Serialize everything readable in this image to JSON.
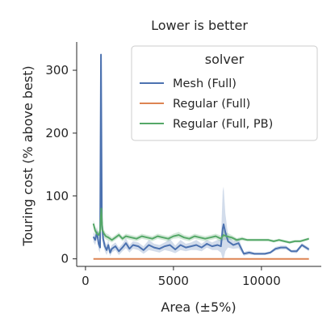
{
  "chart_data": {
    "type": "line",
    "title": "Lower is better",
    "xlabel": "Area (±5%)",
    "ylabel": "Touring cost (% above best)",
    "xlim": [
      -500,
      13400
    ],
    "ylim": [
      -12,
      345
    ],
    "xticks": [
      0,
      5000,
      10000
    ],
    "xtick_labels": [
      "0",
      "5000",
      "10000"
    ],
    "yticks": [
      0,
      100,
      200,
      300
    ],
    "ytick_labels": [
      "0",
      "100",
      "200",
      "300"
    ],
    "grid": false,
    "legend": {
      "title": "solver",
      "placement": "top-right",
      "entries": [
        "Mesh (Full)",
        "Regular (Full)",
        "Regular (Full, PB)"
      ]
    },
    "series": [
      {
        "name": "Mesh (Full)",
        "color": "#4c72b0",
        "x": [
          450,
          550,
          650,
          750,
          830,
          880,
          930,
          1000,
          1100,
          1200,
          1300,
          1400,
          1500,
          1700,
          1900,
          2100,
          2300,
          2500,
          2700,
          3000,
          3300,
          3600,
          3900,
          4200,
          4500,
          4800,
          5100,
          5400,
          5700,
          6000,
          6300,
          6600,
          6900,
          7200,
          7500,
          7700,
          7800,
          7850,
          7950,
          8100,
          8400,
          8700,
          9000,
          9300,
          9600,
          9900,
          10200,
          10500,
          10800,
          11100,
          11400,
          11700,
          12000,
          12300,
          12700
        ],
        "y": [
          35,
          30,
          42,
          24,
          18,
          325,
          60,
          32,
          20,
          14,
          22,
          10,
          16,
          20,
          12,
          18,
          25,
          16,
          22,
          20,
          14,
          22,
          18,
          16,
          20,
          22,
          15,
          22,
          18,
          20,
          22,
          18,
          24,
          20,
          22,
          20,
          48,
          55,
          42,
          28,
          22,
          25,
          8,
          10,
          8,
          8,
          8,
          10,
          16,
          18,
          18,
          12,
          12,
          22,
          15
        ],
        "band_width": [
          8,
          8,
          10,
          10,
          8,
          5,
          20,
          10,
          8,
          8,
          8,
          6,
          6,
          6,
          6,
          6,
          8,
          6,
          6,
          6,
          6,
          8,
          6,
          6,
          6,
          10,
          6,
          8,
          6,
          6,
          8,
          6,
          6,
          6,
          8,
          10,
          60,
          60,
          30,
          10,
          6,
          8,
          3,
          3,
          2,
          2,
          2,
          2,
          3,
          3,
          3,
          2,
          3,
          3,
          3
        ]
      },
      {
        "name": "Regular (Full)",
        "color": "#dd8452",
        "x": [
          450,
          12700
        ],
        "y": [
          0,
          0
        ],
        "band_width": [
          0,
          0
        ]
      },
      {
        "name": "Regular (Full, PB)",
        "color": "#55a868",
        "x": [
          450,
          550,
          650,
          750,
          830,
          900,
          960,
          1050,
          1150,
          1300,
          1500,
          1700,
          1900,
          2100,
          2300,
          2600,
          2900,
          3200,
          3500,
          3800,
          4100,
          4400,
          4700,
          5000,
          5300,
          5600,
          5900,
          6200,
          6500,
          6800,
          7100,
          7400,
          7700,
          7850,
          8000,
          8300,
          8600,
          8900,
          9200,
          9500,
          9800,
          10100,
          10400,
          10700,
          11000,
          11300,
          11600,
          11900,
          12200,
          12700
        ],
        "y": [
          56,
          45,
          40,
          38,
          44,
          80,
          46,
          40,
          36,
          34,
          30,
          34,
          38,
          32,
          36,
          34,
          32,
          36,
          34,
          32,
          36,
          34,
          32,
          36,
          38,
          34,
          32,
          36,
          34,
          32,
          34,
          36,
          32,
          38,
          36,
          34,
          30,
          32,
          30,
          30,
          30,
          30,
          30,
          28,
          30,
          28,
          26,
          28,
          28,
          32
        ],
        "band_width": [
          6,
          6,
          6,
          6,
          8,
          15,
          8,
          6,
          5,
          5,
          4,
          4,
          4,
          4,
          4,
          4,
          4,
          4,
          4,
          4,
          4,
          4,
          4,
          4,
          5,
          4,
          4,
          4,
          4,
          4,
          4,
          4,
          5,
          8,
          6,
          4,
          3,
          3,
          2,
          2,
          2,
          2,
          2,
          2,
          2,
          2,
          2,
          2,
          2,
          2
        ]
      }
    ]
  }
}
